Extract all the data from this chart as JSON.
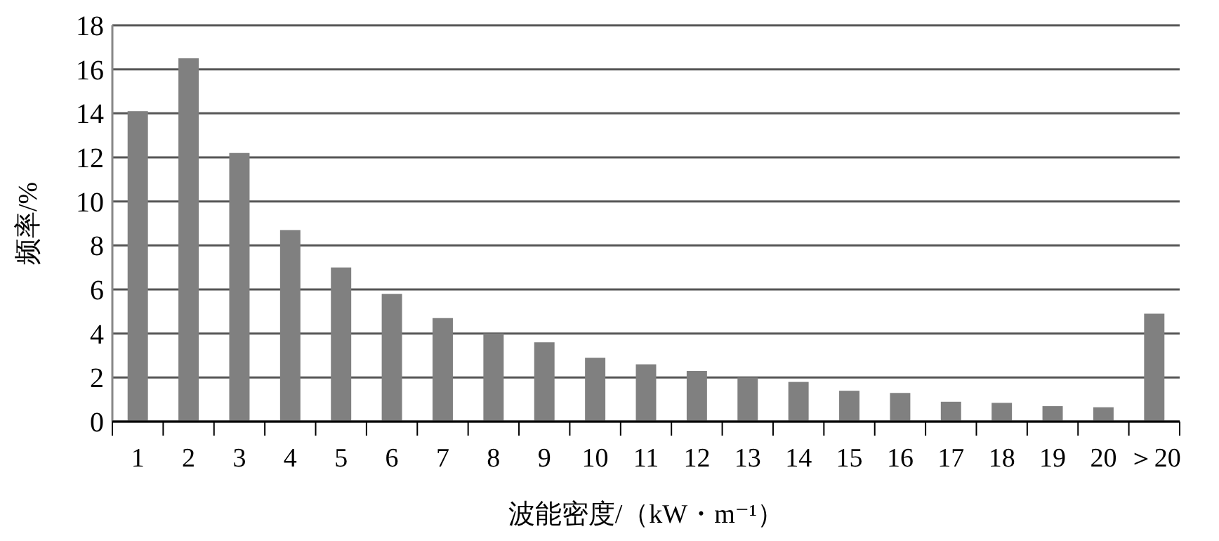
{
  "chart_data": {
    "type": "bar",
    "xlabel": "波能密度/（kW・m⁻¹）",
    "ylabel": "频率/%",
    "categories": [
      "1",
      "2",
      "3",
      "4",
      "5",
      "6",
      "7",
      "8",
      "9",
      "10",
      "11",
      "12",
      "13",
      "14",
      "15",
      "16",
      "17",
      "18",
      "19",
      "20",
      "＞20"
    ],
    "values": [
      14.1,
      16.5,
      12.2,
      8.7,
      7.0,
      5.8,
      4.7,
      4.0,
      3.6,
      2.9,
      2.6,
      2.3,
      2.0,
      1.8,
      1.4,
      1.3,
      0.9,
      0.85,
      0.7,
      0.65,
      4.9
    ],
    "color": "#808080",
    "ylim": [
      0,
      18
    ],
    "yticks": [
      0,
      2,
      4,
      6,
      8,
      10,
      12,
      14,
      16,
      18
    ],
    "grid": "y"
  }
}
